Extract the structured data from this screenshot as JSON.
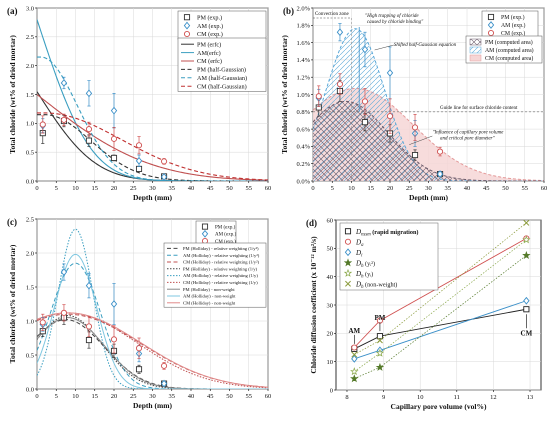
{
  "chart_data": [
    {
      "panel": "(a)",
      "type": "line",
      "xlabel": "Depth (mm)",
      "ylabel": "Total chloride (wt% of dried mortar)",
      "xlim": [
        0,
        60
      ],
      "ylim": [
        0,
        3.0
      ],
      "xticks": [
        0,
        5,
        10,
        15,
        20,
        25,
        30,
        35,
        40,
        45,
        50,
        55,
        60
      ],
      "yticks": [
        0.0,
        0.5,
        1.0,
        1.5,
        2.0,
        2.5,
        3.0
      ],
      "legend_position": "top-right",
      "experimental": [
        {
          "name": "PM (exp.)",
          "color": "#333333",
          "marker": "square",
          "x": [
            1.5,
            7,
            13.5,
            20,
            26.5,
            33
          ],
          "y": [
            0.83,
            1.04,
            0.7,
            0.4,
            0.21,
            0.08
          ],
          "err": [
            0.18,
            0.1,
            0.1,
            0.05,
            0.04,
            0.02
          ]
        },
        {
          "name": "AM (exp.)",
          "color": "#3a8fc8",
          "marker": "diamond",
          "x": [
            1.5,
            7,
            13.5,
            20,
            26.5,
            33
          ],
          "y": [
            0.96,
            1.7,
            1.52,
            1.22,
            0.35,
            0.07
          ],
          "err": [
            0.12,
            0.1,
            0.22,
            0.3,
            0.1,
            0.03
          ]
        },
        {
          "name": "CM (exp.)",
          "color": "#d05050",
          "marker": "circle",
          "x": [
            1.5,
            7,
            13.5,
            20,
            26.5,
            33
          ],
          "y": [
            0.98,
            1.06,
            0.9,
            0.73,
            0.62,
            0.34
          ],
          "err": [
            0.15,
            0.1,
            0.12,
            0.2,
            0.15,
            0.05
          ]
        }
      ],
      "curves": [
        {
          "name": "PM (erfc)",
          "color": "#333333",
          "dash": "solid",
          "model": "erfc",
          "c0": 1.55,
          "D": 70
        },
        {
          "name": "AM(erfc)",
          "color": "#3a9ec0",
          "dash": "solid",
          "model": "erfc",
          "c0": 2.8,
          "D": 60
        },
        {
          "name": "CM (erfc)",
          "color": "#c05050",
          "dash": "solid",
          "model": "erfc",
          "c0": 1.5,
          "D": 260
        },
        {
          "name": "PM (half-Gaussian)",
          "color": "#333333",
          "dash": "dash",
          "model": "gauss",
          "c0": 1.15,
          "xp": 2,
          "s": 12
        },
        {
          "name": "AM (half-Gaussian)",
          "color": "#3a9ec0",
          "dash": "dash",
          "model": "gauss",
          "c0": 2.15,
          "xp": 1,
          "s": 9.5
        },
        {
          "name": "CM (half-Gaussian)",
          "color": "#c03030",
          "dash": "dash",
          "model": "gauss",
          "c0": 1.18,
          "xp": 2,
          "s": 20
        }
      ]
    },
    {
      "panel": "(b)",
      "type": "area",
      "xlabel": "Depth (mm)",
      "ylabel": "Total chloride (wt% of dried mortar)",
      "xlim": [
        0,
        60
      ],
      "ylim": [
        0,
        2.0
      ],
      "xticks": [
        0,
        5,
        10,
        15,
        20,
        25,
        30,
        35,
        40,
        45,
        50,
        55,
        60
      ],
      "yticks": [
        0.0,
        0.2,
        0.4,
        0.6,
        0.8,
        1.0,
        1.2,
        1.4,
        1.6,
        1.8,
        2.0
      ],
      "yticklabels": [
        "0.0%",
        "0.2%",
        "0.4%",
        "0.6%",
        "0.8%",
        "1.0%",
        "1.2%",
        "1.4%",
        "1.6%",
        "1.8%",
        "2.0%"
      ],
      "legend_position": "top-right",
      "experimental": [
        {
          "name": "PM (exp.)",
          "color": "#333333",
          "marker": "square",
          "x": [
            1.5,
            7,
            13.5,
            20,
            26.5,
            33
          ],
          "y": [
            0.85,
            1.04,
            0.68,
            0.55,
            0.3,
            0.08
          ],
          "err": [
            0.1,
            0.12,
            0.1,
            0.1,
            0.06,
            0.03
          ]
        },
        {
          "name": "AM (exp.)",
          "color": "#3a8fc8",
          "marker": "diamond",
          "x": [
            1.5,
            7,
            13.5,
            20,
            26.5,
            33
          ],
          "y": [
            0.96,
            1.72,
            1.52,
            1.25,
            0.55,
            0.08
          ],
          "err": [
            0.1,
            0.1,
            0.2,
            0.3,
            0.15,
            0.03
          ]
        },
        {
          "name": "CM (exp.)",
          "color": "#d05050",
          "marker": "circle",
          "x": [
            1.5,
            7,
            13.5,
            20,
            26.5,
            33
          ],
          "y": [
            0.98,
            1.12,
            0.92,
            0.75,
            0.62,
            0.34
          ],
          "err": [
            0.12,
            0.12,
            0.15,
            0.2,
            0.15,
            0.05
          ]
        }
      ],
      "areas": [
        {
          "name": "PM (computed area)",
          "color": "#6a5a6a",
          "pattern": "crosshatch",
          "c0": 0.92,
          "xp": 8.5,
          "s": 11
        },
        {
          "name": "AM (computed area)",
          "color": "#5aa8d8",
          "pattern": "hatch",
          "c0": 1.76,
          "xp": 11,
          "s": 7.5
        },
        {
          "name": "CM (computed area)",
          "color": "#e49a9a",
          "pattern": "solid",
          "c0": 1.07,
          "xp": 11,
          "s": 15
        }
      ],
      "annotations": {
        "convection_zone": "Convection zone",
        "high_trapping": "\"High trapping of chloride caused by chloride binding\"",
        "shifted": "Shifted half-Gaussian equation",
        "guide": "Guide line for surface chloride content",
        "influence": "\"Influence of capillary pore volume and critical pore diameter\""
      },
      "guide_y": 0.8
    },
    {
      "panel": "(c)",
      "type": "line",
      "xlabel": "Depth (mm)",
      "ylabel": "Total chloride (wt% of dried mortar)",
      "xlim": [
        0,
        60
      ],
      "ylim": [
        0,
        2.5
      ],
      "xticks": [
        0,
        5,
        10,
        15,
        20,
        25,
        30,
        35,
        40,
        45,
        50,
        55,
        60
      ],
      "yticks": [
        0.0,
        0.5,
        1.0,
        1.5,
        2.0,
        2.5
      ],
      "legend_position": "top-right",
      "experimental": [
        {
          "name": "PM (exp.)",
          "color": "#333333",
          "marker": "square",
          "x": [
            1.5,
            7,
            13.5,
            20,
            26.5,
            33
          ],
          "y": [
            0.85,
            1.05,
            0.72,
            0.56,
            0.29,
            0.08
          ],
          "err": [
            0.08,
            0.1,
            0.12,
            0.1,
            0.06,
            0.03
          ]
        },
        {
          "name": "AM (exp.)",
          "color": "#3a8fc8",
          "marker": "diamond",
          "x": [
            1.5,
            7,
            13.5,
            20,
            26.5,
            33
          ],
          "y": [
            0.95,
            1.72,
            1.52,
            1.25,
            0.52,
            0.08
          ],
          "err": [
            0.1,
            0.12,
            0.18,
            0.3,
            0.12,
            0.03
          ]
        },
        {
          "name": "CM (exp.)",
          "color": "#d05050",
          "marker": "circle",
          "x": [
            1.5,
            7,
            13.5,
            20,
            26.5,
            33
          ],
          "y": [
            0.98,
            1.12,
            0.92,
            0.73,
            0.6,
            0.34
          ],
          "err": [
            0.12,
            0.12,
            0.15,
            0.2,
            0.15,
            0.05
          ]
        }
      ],
      "curves": [
        {
          "name": "PM (Holliday) - relative weighting (1/y²)",
          "color": "#444444",
          "dash": "dash",
          "model": "holl",
          "c0": 1.02,
          "xp": 7.5,
          "s": 10
        },
        {
          "name": "AM (Holliday) - relative weighting (1/y²)",
          "color": "#3a9ec0",
          "dash": "dash",
          "model": "holl",
          "c0": 1.85,
          "xp": 10,
          "s": 6.5
        },
        {
          "name": "CM (Holliday) - relative weighting (1/y²)",
          "color": "#c05050",
          "dash": "dash",
          "model": "holl",
          "c0": 1.1,
          "xp": 8,
          "s": 19
        },
        {
          "name": "PM (Holliday) - relative weighting (1/y)",
          "color": "#444444",
          "dash": "dot",
          "model": "holl",
          "c0": 1.08,
          "xp": 8,
          "s": 9
        },
        {
          "name": "AM (Holliday) - relative weighting (1/y)",
          "color": "#3a9ec0",
          "dash": "dot",
          "model": "holl",
          "c0": 2.35,
          "xp": 10,
          "s": 4.5
        },
        {
          "name": "CM (Holliday) - relative weighting (1/y)",
          "color": "#c05050",
          "dash": "dot",
          "model": "holl",
          "c0": 1.12,
          "xp": 8,
          "s": 18
        },
        {
          "name": "PM (Holliday) - non-weight",
          "color": "#888888",
          "dash": "solid",
          "model": "holl",
          "c0": 1.05,
          "xp": 8,
          "s": 9.5
        },
        {
          "name": "AM (Holliday) - non-weight",
          "color": "#7fc7e0",
          "dash": "solid",
          "model": "holl",
          "c0": 1.98,
          "xp": 10,
          "s": 5.5
        },
        {
          "name": "CM (Holliday) - non-weight",
          "color": "#e08a8a",
          "dash": "solid",
          "model": "holl",
          "c0": 1.12,
          "xp": 8,
          "s": 19
        }
      ]
    },
    {
      "panel": "(d)",
      "type": "scatter",
      "xlabel": "Capillary pore volume (vol%)",
      "ylabel": "Chloride diffusion coefficient (x 10⁻¹² m²/s)",
      "xlim": [
        7.7,
        13.3
      ],
      "ylim": [
        0,
        60
      ],
      "xticks": [
        8,
        9,
        10,
        11,
        12,
        13
      ],
      "yticks": [
        0,
        10,
        20,
        30,
        40,
        50,
        60
      ],
      "legend_position": "top-left",
      "x": [
        8.2,
        8.9,
        12.9
      ],
      "point_labels": [
        "AM",
        "PM",
        "CM"
      ],
      "series": [
        {
          "name_main": "D",
          "name_sub": "nssm",
          "name_tail": " (rapid migration)",
          "color": "#222222",
          "marker": "square",
          "line": "solid",
          "values": [
            14.5,
            19,
            28.5
          ]
        },
        {
          "name_main": "D",
          "name_sub": "a",
          "name_tail": "",
          "color": "#d05050",
          "marker": "circle",
          "line": "solid",
          "values": [
            15,
            24.5,
            53.5
          ]
        },
        {
          "name_main": "D",
          "name_sub": "i",
          "name_tail": "",
          "color": "#3a8fc8",
          "marker": "diamond",
          "line": "solid",
          "values": [
            11,
            14,
            31.5
          ]
        },
        {
          "name_main": "D",
          "name_sub": "h",
          "name_tail": " (yᵢ²)",
          "color": "#557a2a",
          "marker": "star-filled",
          "line": "dot",
          "values": [
            4,
            8,
            47.5
          ]
        },
        {
          "name_main": "D",
          "name_sub": "h",
          "name_tail": " (yᵢ)",
          "color": "#8aa84a",
          "marker": "star-open",
          "line": "dot",
          "values": [
            6.5,
            13,
            53
          ]
        },
        {
          "name_main": "D",
          "name_sub": "h",
          "name_tail": " (non-weight)",
          "color": "#8a9a3a",
          "marker": "x",
          "line": "dot",
          "values": [
            12.5,
            17.5,
            59
          ]
        }
      ]
    }
  ]
}
